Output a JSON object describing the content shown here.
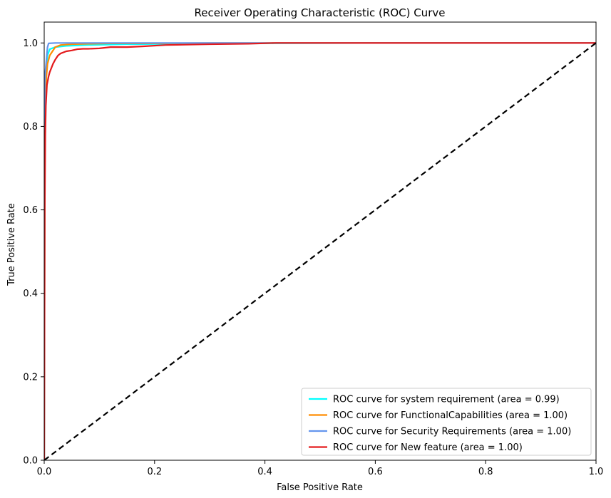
{
  "chart_data": {
    "type": "line",
    "title": "Receiver Operating Characteristic (ROC) Curve",
    "xlabel": "False Positive Rate",
    "ylabel": "True Positive Rate",
    "xlim": [
      0,
      1
    ],
    "ylim": [
      0,
      1.05
    ],
    "xticks": [
      "0.0",
      "0.2",
      "0.4",
      "0.6",
      "0.8",
      "1.0"
    ],
    "yticks": [
      "0.0",
      "0.2",
      "0.4",
      "0.6",
      "0.8",
      "1.0"
    ],
    "grid": false,
    "legend_position": "lower-right",
    "series": [
      {
        "name": "ROC curve for system requirement (area = 0.99)",
        "color": "#00ffff",
        "x": [
          0,
          0.001,
          0.002,
          0.004,
          0.006,
          0.01,
          0.02,
          0.04,
          0.08,
          0.15,
          0.25,
          0.4,
          0.6,
          1.0
        ],
        "y": [
          0,
          0.75,
          0.88,
          0.94,
          0.97,
          0.985,
          0.99,
          0.993,
          0.995,
          0.997,
          0.998,
          0.999,
          1.0,
          1.0
        ]
      },
      {
        "name": "ROC curve for FunctionalCapabilities (area = 1.00)",
        "color": "#ff8c00",
        "x": [
          0,
          0.001,
          0.002,
          0.004,
          0.006,
          0.01,
          0.015,
          0.02,
          0.03,
          0.05,
          0.08,
          0.12,
          0.2,
          0.3,
          0.5,
          1.0
        ],
        "y": [
          0,
          0.7,
          0.85,
          0.92,
          0.95,
          0.97,
          0.98,
          0.99,
          0.995,
          0.997,
          0.998,
          0.999,
          0.999,
          1.0,
          1.0,
          1.0
        ]
      },
      {
        "name": "ROC curve for Security Requirements (area = 1.00)",
        "color": "#6495ed",
        "x": [
          0,
          0.0005,
          0.001,
          0.002,
          0.004,
          0.006,
          0.008,
          0.02,
          0.05,
          0.1,
          0.3,
          1.0
        ],
        "y": [
          0,
          0.8,
          0.9,
          0.93,
          0.96,
          0.99,
          0.999,
          1.0,
          1.0,
          1.0,
          1.0,
          1.0
        ]
      },
      {
        "name": "ROC curve for New feature (area = 1.00)",
        "color": "#e31a1c",
        "x": [
          0,
          0.001,
          0.002,
          0.003,
          0.005,
          0.008,
          0.01,
          0.013,
          0.016,
          0.02,
          0.025,
          0.03,
          0.04,
          0.05,
          0.06,
          0.07,
          0.08,
          0.1,
          0.12,
          0.15,
          0.18,
          0.22,
          0.3,
          0.37,
          0.42,
          0.5,
          0.57,
          0.7,
          1.0
        ],
        "y": [
          0,
          0.6,
          0.78,
          0.85,
          0.9,
          0.92,
          0.93,
          0.94,
          0.95,
          0.96,
          0.97,
          0.975,
          0.98,
          0.982,
          0.985,
          0.986,
          0.986,
          0.987,
          0.99,
          0.99,
          0.992,
          0.995,
          0.997,
          0.998,
          1.0,
          1.0,
          1.0,
          1.0,
          1.0
        ]
      },
      {
        "name": "",
        "color": "#000000",
        "dashed": true,
        "x": [
          0,
          1
        ],
        "y": [
          0,
          1
        ]
      }
    ]
  }
}
